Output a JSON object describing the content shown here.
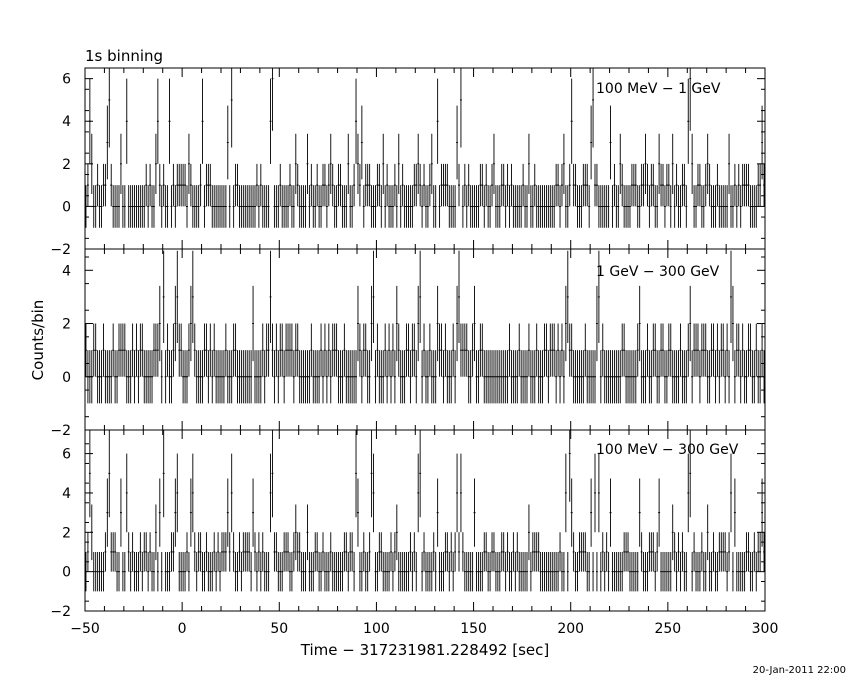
{
  "header": {
    "binning": "1s binning"
  },
  "footer": {
    "timestamp": "20-Jan-2011 22:00"
  },
  "chart_data": {
    "type": "line",
    "style": "histogram with 1-sigma error bars",
    "ylabel": "Counts/bin",
    "xlabel": "Time − 317231981.228492 [sec]",
    "xlim": [
      -50,
      300
    ],
    "x_ticks": [
      -50,
      0,
      50,
      100,
      150,
      200,
      250,
      300
    ],
    "x_tick_labels": [
      "−50",
      "0",
      "50",
      "100",
      "150",
      "200",
      "250",
      "300"
    ],
    "bin_width": 1,
    "panels": [
      {
        "label": "100 MeV − 1 GeV",
        "ylim": [
          -2,
          6.5
        ],
        "y_ticks": [
          -2,
          0,
          2,
          4,
          6
        ],
        "y_tick_labels": [
          "−2",
          "0",
          "2",
          "4",
          "6"
        ],
        "peaks": [
          {
            "t": -48,
            "c": 4
          },
          {
            "t": -47,
            "c": 2
          },
          {
            "t": -39,
            "c": 3
          },
          {
            "t": -38,
            "c": 5
          },
          {
            "t": -32,
            "c": 2
          },
          {
            "t": -29,
            "c": 4
          },
          {
            "t": -14,
            "c": 2
          },
          {
            "t": -13,
            "c": 4
          },
          {
            "t": -7,
            "c": 4
          },
          {
            "t": 3,
            "c": 2
          },
          {
            "t": 10,
            "c": 4
          },
          {
            "t": 23,
            "c": 3
          },
          {
            "t": 25,
            "c": 5
          },
          {
            "t": 45,
            "c": 4
          },
          {
            "t": 46,
            "c": 6
          },
          {
            "t": 58,
            "c": 2
          },
          {
            "t": 64,
            "c": 2
          },
          {
            "t": 76,
            "c": 2
          },
          {
            "t": 85,
            "c": 2
          },
          {
            "t": 89,
            "c": 4
          },
          {
            "t": 90,
            "c": 2
          },
          {
            "t": 92,
            "c": 3
          },
          {
            "t": 103,
            "c": 2
          },
          {
            "t": 111,
            "c": 2
          },
          {
            "t": 121,
            "c": 2
          },
          {
            "t": 128,
            "c": 2
          },
          {
            "t": 131,
            "c": 4
          },
          {
            "t": 141,
            "c": 3
          },
          {
            "t": 143,
            "c": 5
          },
          {
            "t": 160,
            "c": 2
          },
          {
            "t": 178,
            "c": 2
          },
          {
            "t": 196,
            "c": 2
          },
          {
            "t": 200,
            "c": 4
          },
          {
            "t": 210,
            "c": 3
          },
          {
            "t": 211,
            "c": 5
          },
          {
            "t": 220,
            "c": 3
          },
          {
            "t": 225,
            "c": 2
          },
          {
            "t": 238,
            "c": 2
          },
          {
            "t": 245,
            "c": 2
          },
          {
            "t": 252,
            "c": 2
          },
          {
            "t": 260,
            "c": 4
          },
          {
            "t": 261,
            "c": 6
          },
          {
            "t": 262,
            "c": 2
          },
          {
            "t": 270,
            "c": 2
          },
          {
            "t": 281,
            "c": 2
          },
          {
            "t": 298,
            "c": 3
          }
        ]
      },
      {
        "label": "1 GeV − 300 GeV",
        "ylim": [
          -2,
          4.8
        ],
        "y_ticks": [
          -2,
          0,
          2,
          4
        ],
        "y_tick_labels": [
          "−2",
          "0",
          "2",
          "4"
        ],
        "peaks": [
          {
            "t": -12,
            "c": 2
          },
          {
            "t": -10,
            "c": 3
          },
          {
            "t": -4,
            "c": 2
          },
          {
            "t": -3,
            "c": 3
          },
          {
            "t": 4,
            "c": 2
          },
          {
            "t": 5,
            "c": 3
          },
          {
            "t": 36,
            "c": 2
          },
          {
            "t": 45,
            "c": 3
          },
          {
            "t": 90,
            "c": 2
          },
          {
            "t": 97,
            "c": 2
          },
          {
            "t": 98,
            "c": 3
          },
          {
            "t": 110,
            "c": 2
          },
          {
            "t": 121,
            "c": 2
          },
          {
            "t": 122,
            "c": 3
          },
          {
            "t": 131,
            "c": 2
          },
          {
            "t": 141,
            "c": 2
          },
          {
            "t": 142,
            "c": 3
          },
          {
            "t": 150,
            "c": 2
          },
          {
            "t": 197,
            "c": 2
          },
          {
            "t": 198,
            "c": 3
          },
          {
            "t": 213,
            "c": 2
          },
          {
            "t": 214,
            "c": 3
          },
          {
            "t": 235,
            "c": 2
          },
          {
            "t": 261,
            "c": 2
          },
          {
            "t": 282,
            "c": 3
          },
          {
            "t": 283,
            "c": 2
          }
        ]
      },
      {
        "label": "100 MeV − 300 GeV",
        "ylim": [
          -2,
          7.2
        ],
        "y_ticks": [
          -2,
          0,
          2,
          4,
          6
        ],
        "y_tick_labels": [
          "−2",
          "0",
          "2",
          "4",
          "6"
        ],
        "peaks": [
          {
            "t": -48,
            "c": 5
          },
          {
            "t": -47,
            "c": 2
          },
          {
            "t": -39,
            "c": 3
          },
          {
            "t": -38,
            "c": 5
          },
          {
            "t": -32,
            "c": 3
          },
          {
            "t": -29,
            "c": 4
          },
          {
            "t": -14,
            "c": 2
          },
          {
            "t": -12,
            "c": 3
          },
          {
            "t": -10,
            "c": 5
          },
          {
            "t": -4,
            "c": 3
          },
          {
            "t": -3,
            "c": 4
          },
          {
            "t": 4,
            "c": 3
          },
          {
            "t": 5,
            "c": 4
          },
          {
            "t": 23,
            "c": 3
          },
          {
            "t": 25,
            "c": 4
          },
          {
            "t": 36,
            "c": 3
          },
          {
            "t": 45,
            "c": 4
          },
          {
            "t": 46,
            "c": 5
          },
          {
            "t": 58,
            "c": 2
          },
          {
            "t": 64,
            "c": 2
          },
          {
            "t": 89,
            "c": 5
          },
          {
            "t": 90,
            "c": 3
          },
          {
            "t": 97,
            "c": 5
          },
          {
            "t": 98,
            "c": 4
          },
          {
            "t": 110,
            "c": 2
          },
          {
            "t": 121,
            "c": 4
          },
          {
            "t": 122,
            "c": 5
          },
          {
            "t": 131,
            "c": 3
          },
          {
            "t": 141,
            "c": 4
          },
          {
            "t": 143,
            "c": 4
          },
          {
            "t": 150,
            "c": 3
          },
          {
            "t": 178,
            "c": 2
          },
          {
            "t": 197,
            "c": 4
          },
          {
            "t": 199,
            "c": 6
          },
          {
            "t": 200,
            "c": 3
          },
          {
            "t": 210,
            "c": 3
          },
          {
            "t": 212,
            "c": 4
          },
          {
            "t": 214,
            "c": 4
          },
          {
            "t": 220,
            "c": 3
          },
          {
            "t": 235,
            "c": 3
          },
          {
            "t": 245,
            "c": 3
          },
          {
            "t": 252,
            "c": 2
          },
          {
            "t": 260,
            "c": 4
          },
          {
            "t": 261,
            "c": 5
          },
          {
            "t": 270,
            "c": 2
          },
          {
            "t": 282,
            "c": 4
          },
          {
            "t": 284,
            "c": 3
          },
          {
            "t": 298,
            "c": 3
          }
        ]
      }
    ]
  }
}
